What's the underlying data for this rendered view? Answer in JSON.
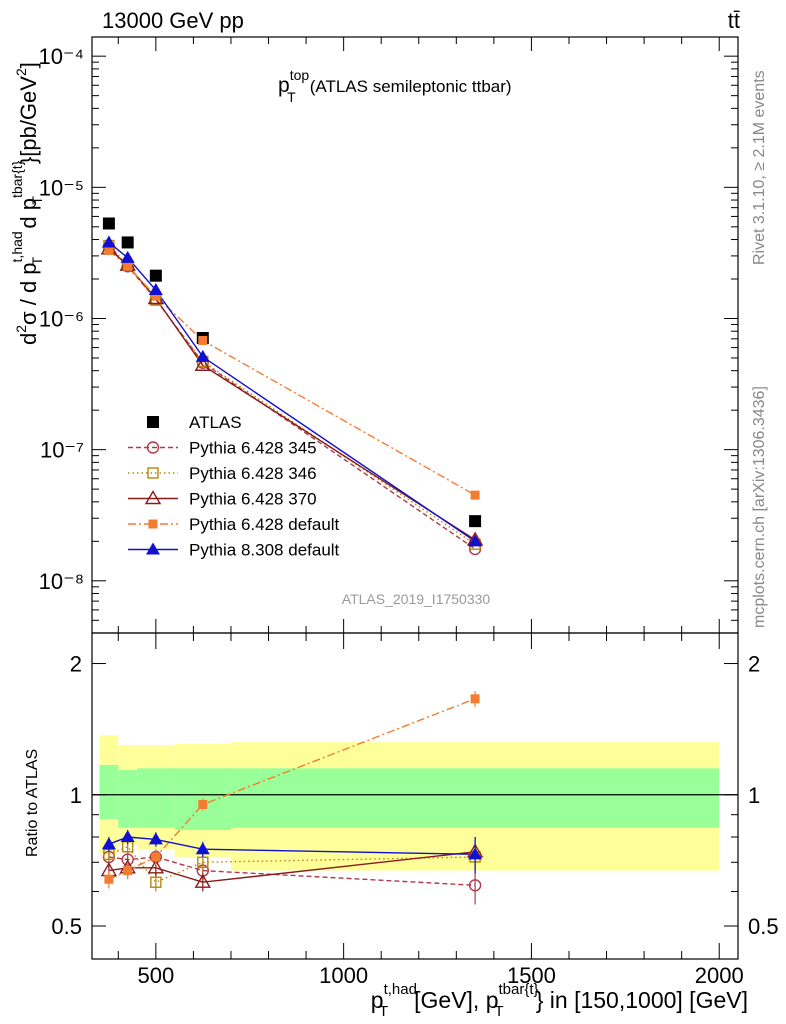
{
  "header": {
    "left_title": "13000 GeV pp",
    "process_label": "tt̄"
  },
  "side_labels": {
    "rivet": "Rivet 3.1.10, ≥ 2.1M events",
    "mcplots": "mcplots.cern.ch [arXiv:1306.3436]"
  },
  "colors": {
    "data": "#000000",
    "p345": "#b03a48",
    "p346": "#b8860b",
    "p370": "#8b1a1a",
    "p6def": "#f47c30",
    "p8def": "#1010d0",
    "band_yellow": "#ffff99",
    "band_green": "#99ff99"
  },
  "chart_data": [
    {
      "type": "line",
      "title": "p_T^top (ATLAS semileptonic ttbar)",
      "title_main": "p",
      "title_sup": "top",
      "title_sub": "T",
      "title_rest": "(ATLAS semileptonic ttbar)",
      "analysis_id": "ATLAS_2019_I1750330",
      "ylabel": "d²σ / d p_T^{t,had} d p_T^{tbar{t}} [pb/GeV²]",
      "yscale": "log",
      "ylim": [
        4e-09,
        0.00014
      ],
      "xlim": [
        330,
        2050
      ],
      "ytick_labels": [
        "10⁻⁸",
        "10⁻⁷",
        "10⁻⁶",
        "10⁻⁵",
        "10⁻⁴"
      ],
      "ytick_values": [
        1e-08,
        1e-07,
        1e-06,
        1e-05,
        0.0001
      ],
      "legend_position": "middle-left",
      "series": [
        {
          "name": "ATLAS",
          "key": "data",
          "marker": "filled-square",
          "x": [
            375,
            425,
            500,
            625,
            1350
          ],
          "y": [
            5.3e-06,
            3.8e-06,
            2.12e-06,
            7.1e-07,
            2.85e-08
          ]
        },
        {
          "name": "Pythia 6.428 345",
          "key": "p345",
          "marker": "open-circle",
          "dash": "5,3",
          "x": [
            375,
            425,
            500,
            625,
            1350
          ],
          "y": [
            3.5e-06,
            2.5e-06,
            1.4e-06,
            4.6e-07,
            1.75e-08
          ]
        },
        {
          "name": "Pythia 6.428 346",
          "key": "p346",
          "marker": "open-square",
          "dash": "1.5,3",
          "x": [
            375,
            425,
            500,
            625,
            1350
          ],
          "y": [
            3.6e-06,
            2.55e-06,
            1.38e-06,
            4.7e-07,
            1.9e-08
          ]
        },
        {
          "name": "Pythia 6.428 370",
          "key": "p370",
          "marker": "open-triangle",
          "dash": "",
          "x": [
            375,
            425,
            500,
            625,
            1350
          ],
          "y": [
            3.4e-06,
            2.55e-06,
            1.42e-06,
            4.4e-07,
            2.05e-08
          ]
        },
        {
          "name": "Pythia 6.428 default",
          "key": "p6def",
          "marker": "small-filled-square",
          "dash": "8,3,2,3",
          "x": [
            375,
            425,
            500,
            625,
            1350
          ],
          "y": [
            3.3e-06,
            2.5e-06,
            1.48e-06,
            6.8e-07,
            4.5e-08
          ]
        },
        {
          "name": "Pythia 8.308 default",
          "key": "p8def",
          "marker": "filled-triangle",
          "dash": "",
          "x": [
            375,
            425,
            500,
            625,
            1350
          ],
          "y": [
            3.8e-06,
            2.9e-06,
            1.65e-06,
            5.1e-07,
            2e-08
          ]
        }
      ]
    },
    {
      "type": "line",
      "ylabel": "Ratio to ATLAS",
      "xlabel": "p_T^{t,had} [GeV], p_T^{tbar{t}} in [150,1000] [GeV]",
      "xlabel_parts": {
        "a_sup": "t,had",
        "a_rest": "[GeV], p",
        "b_sup": "tbar{t}",
        "b_rest": "} in [150,1000] [GeV]"
      },
      "yscale": "log",
      "ylim": [
        0.42,
        2.35
      ],
      "xlim": [
        330,
        2050
      ],
      "xtick_labels": [
        "500",
        "1000",
        "1500",
        "2000"
      ],
      "xtick_values": [
        500,
        1000,
        1500,
        2000
      ],
      "ytick_labels": [
        "0.5",
        "1",
        "2"
      ],
      "ytick_values": [
        0.5,
        1,
        2
      ],
      "bands": {
        "edges": [
          350,
          400,
          450,
          550,
          700,
          2000
        ],
        "yellow_low": [
          0.73,
          0.77,
          0.75,
          0.72,
          0.67,
          0.62
        ],
        "yellow_high": [
          1.37,
          1.3,
          1.3,
          1.31,
          1.32,
          1.52
        ],
        "green_low": [
          0.88,
          0.84,
          0.84,
          0.83,
          0.84,
          0.84
        ],
        "green_high": [
          1.17,
          1.14,
          1.15,
          1.15,
          1.15,
          1.27
        ]
      },
      "series": [
        {
          "name": "Pythia 6.428 345",
          "key": "p345",
          "marker": "open-circle",
          "dash": "5,3",
          "x": [
            375,
            425,
            500,
            625,
            1350
          ],
          "y": [
            0.72,
            0.71,
            0.72,
            0.67,
            0.62
          ],
          "err": [
            0.03,
            0.03,
            0.03,
            0.03,
            0.06
          ]
        },
        {
          "name": "Pythia 6.428 346",
          "key": "p346",
          "marker": "open-square",
          "dash": "1.5,3",
          "x": [
            375,
            425,
            500,
            625,
            1350
          ],
          "y": [
            0.73,
            0.76,
            0.63,
            0.7,
            0.72
          ],
          "err": [
            0.03,
            0.03,
            0.03,
            0.03,
            0.06
          ]
        },
        {
          "name": "Pythia 6.428 370",
          "key": "p370",
          "marker": "open-triangle",
          "dash": "",
          "x": [
            375,
            425,
            500,
            625,
            1350
          ],
          "y": [
            0.67,
            0.68,
            0.68,
            0.63,
            0.74
          ],
          "err": [
            0.03,
            0.03,
            0.03,
            0.03,
            0.06
          ]
        },
        {
          "name": "Pythia 6.428 default",
          "key": "p6def",
          "marker": "small-filled-square",
          "dash": "8,3,2,3",
          "x": [
            375,
            425,
            500,
            625,
            1350
          ],
          "y": [
            0.64,
            0.67,
            0.72,
            0.95,
            1.66
          ],
          "err": [
            0.03,
            0.03,
            0.03,
            0.03,
            0.07
          ]
        },
        {
          "name": "Pythia 8.308 default",
          "key": "p8def",
          "marker": "filled-triangle",
          "dash": "",
          "x": [
            375,
            425,
            500,
            625,
            1350
          ],
          "y": [
            0.77,
            0.8,
            0.79,
            0.75,
            0.73
          ],
          "err": [
            0.03,
            0.03,
            0.03,
            0.03,
            0.07
          ]
        }
      ]
    }
  ]
}
